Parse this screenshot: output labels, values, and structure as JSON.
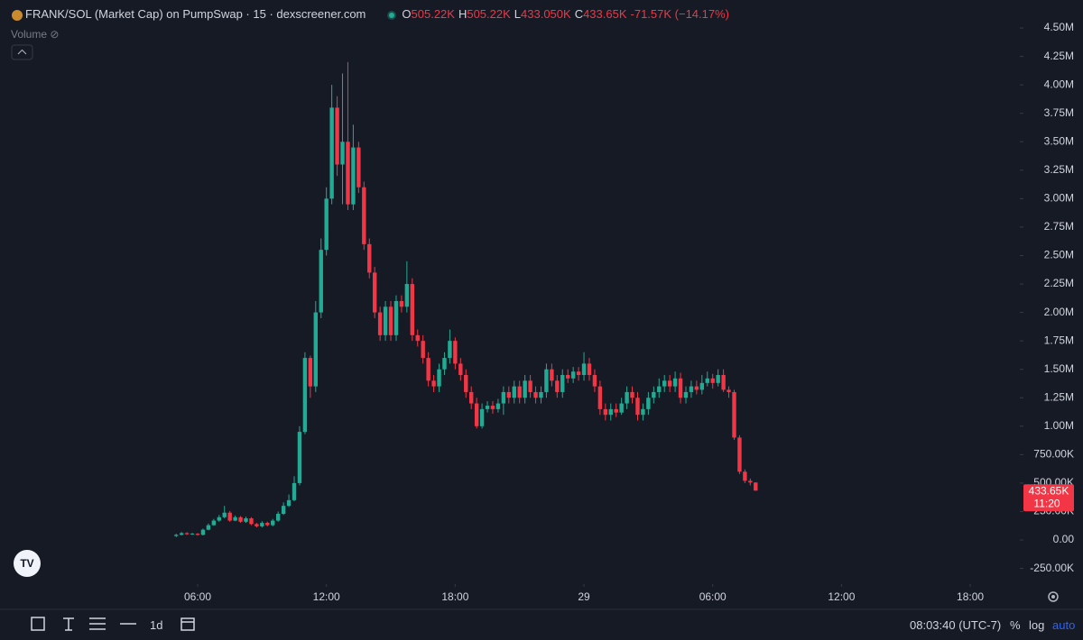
{
  "chart_data": {
    "type": "candlestick",
    "title": "FRANK/SOL (Market Cap) on PumpSwap · 15 · dexscreener.com",
    "legend_ohlc": [
      {
        "key": "O",
        "text": "505.22K"
      },
      {
        "key": "H",
        "text": "505.22K"
      },
      {
        "key": "L",
        "text": "433.050K"
      },
      {
        "key": "C",
        "text": "433.65K"
      }
    ],
    "change": "-71.57K (−14.17%)",
    "volume_label": "Volume",
    "up_color": "#22ab94",
    "down_color": "#f23645",
    "grid": false,
    "log_scale": false,
    "x": [
      5,
      5.25,
      5.5,
      5.75,
      6,
      6.25,
      6.5,
      6.75,
      7,
      7.25,
      7.5,
      7.75,
      8,
      8.25,
      8.5,
      8.75,
      9,
      9.25,
      9.5,
      9.75,
      10,
      10.25,
      10.5,
      10.75,
      11,
      11.25,
      11.5,
      11.75,
      12,
      12.25,
      12.5,
      12.75,
      13,
      13.25,
      13.5,
      13.75,
      14,
      14.25,
      14.5,
      14.75,
      15,
      15.25,
      15.5,
      15.75,
      16,
      16.25,
      16.5,
      16.75,
      17,
      17.25,
      17.5,
      17.75,
      18,
      18.25,
      18.5,
      18.75,
      19,
      19.25,
      19.5,
      19.75,
      20,
      20.25,
      20.5,
      20.75,
      21,
      21.25,
      21.5,
      21.75,
      22,
      22.25,
      22.5,
      22.75,
      23,
      23.25,
      23.5,
      23.75,
      24,
      24.25,
      24.5,
      24.75,
      25,
      25.25,
      25.5,
      25.75,
      26,
      26.25,
      26.5,
      26.75,
      27,
      27.25,
      27.5,
      27.75,
      28,
      28.25,
      28.5,
      28.75,
      29,
      29.25,
      29.5,
      29.75,
      30,
      30.25,
      30.5,
      30.75,
      31,
      31.25,
      31.5,
      31.75,
      32
    ],
    "open": [
      35000,
      45000,
      60000,
      50000,
      55000,
      45000,
      90000,
      130000,
      170000,
      200000,
      240000,
      170000,
      200000,
      160000,
      190000,
      140000,
      120000,
      150000,
      130000,
      170000,
      230000,
      300000,
      350000,
      500000,
      950000,
      1600000,
      1350000,
      2000000,
      2550000,
      3000000,
      3800000,
      3300000,
      3500000,
      2950000,
      3450000,
      3100000,
      2600000,
      2350000,
      2000000,
      1800000,
      2050000,
      1800000,
      2100000,
      2050000,
      2250000,
      1800000,
      1750000,
      1600000,
      1400000,
      1350000,
      1500000,
      1600000,
      1750000,
      1550000,
      1450000,
      1300000,
      1200000,
      1000000,
      1150000,
      1180000,
      1150000,
      1200000,
      1300000,
      1250000,
      1350000,
      1250000,
      1400000,
      1300000,
      1250000,
      1300000,
      1500000,
      1400000,
      1300000,
      1450000,
      1420000,
      1480000,
      1450000,
      1550000,
      1450000,
      1350000,
      1150000,
      1100000,
      1150000,
      1120000,
      1200000,
      1300000,
      1250000,
      1100000,
      1150000,
      1250000,
      1300000,
      1350000,
      1400000,
      1350000,
      1420000,
      1250000,
      1300000,
      1350000,
      1320000,
      1380000,
      1420000,
      1380000,
      1450000,
      1320000,
      1300000,
      900000,
      600000,
      520000,
      505220
    ],
    "high": [
      55000,
      70000,
      68000,
      62000,
      60000,
      100000,
      145000,
      185000,
      220000,
      300000,
      255000,
      215000,
      210000,
      205000,
      200000,
      150000,
      165000,
      160000,
      185000,
      250000,
      330000,
      400000,
      560000,
      1000000,
      1650000,
      1620000,
      2100000,
      2650000,
      3100000,
      4000000,
      3900000,
      4100000,
      4200000,
      3650000,
      3500000,
      3150000,
      2650000,
      2400000,
      2050000,
      2100000,
      2100000,
      2150000,
      2150000,
      2450000,
      2300000,
      1850000,
      1800000,
      1650000,
      1450000,
      1550000,
      1650000,
      1850000,
      1780000,
      1600000,
      1500000,
      1350000,
      1250000,
      1200000,
      1220000,
      1220000,
      1240000,
      1350000,
      1350000,
      1400000,
      1400000,
      1450000,
      1450000,
      1350000,
      1350000,
      1550000,
      1550000,
      1450000,
      1500000,
      1500000,
      1520000,
      1520000,
      1650000,
      1600000,
      1500000,
      1400000,
      1200000,
      1200000,
      1200000,
      1250000,
      1350000,
      1350000,
      1300000,
      1200000,
      1300000,
      1350000,
      1420000,
      1450000,
      1450000,
      1480000,
      1470000,
      1350000,
      1400000,
      1400000,
      1450000,
      1480000,
      1460000,
      1500000,
      1500000,
      1350000,
      1320000,
      920000,
      620000,
      540000,
      505220
    ],
    "low": [
      25000,
      40000,
      45000,
      45000,
      38000,
      40000,
      85000,
      125000,
      160000,
      190000,
      160000,
      165000,
      150000,
      150000,
      130000,
      110000,
      110000,
      120000,
      120000,
      160000,
      220000,
      290000,
      340000,
      480000,
      930000,
      1250000,
      1300000,
      1950000,
      2500000,
      2950000,
      3200000,
      2950000,
      2900000,
      2900000,
      3050000,
      2550000,
      2300000,
      1950000,
      1750000,
      1750000,
      1750000,
      1750000,
      2000000,
      2000000,
      1750000,
      1700000,
      1550000,
      1350000,
      1300000,
      1300000,
      1450000,
      1550000,
      1500000,
      1400000,
      1250000,
      1150000,
      980000,
      980000,
      1120000,
      1110000,
      1120000,
      1100000,
      1200000,
      1200000,
      1200000,
      1200000,
      1250000,
      1200000,
      1200000,
      1250000,
      1350000,
      1250000,
      1250000,
      1380000,
      1380000,
      1400000,
      1400000,
      1400000,
      1300000,
      1100000,
      1050000,
      1050000,
      1080000,
      1100000,
      1150000,
      1200000,
      1050000,
      1050000,
      1100000,
      1200000,
      1250000,
      1300000,
      1300000,
      1300000,
      1200000,
      1200000,
      1250000,
      1280000,
      1280000,
      1350000,
      1330000,
      1350000,
      1300000,
      1250000,
      880000,
      580000,
      500000,
      480000,
      433050
    ],
    "close": [
      45000,
      60000,
      50000,
      55000,
      45000,
      90000,
      130000,
      170000,
      200000,
      240000,
      170000,
      200000,
      160000,
      190000,
      140000,
      120000,
      150000,
      130000,
      170000,
      230000,
      300000,
      350000,
      500000,
      950000,
      1600000,
      1350000,
      2000000,
      2550000,
      3000000,
      3800000,
      3300000,
      3500000,
      2950000,
      3450000,
      3100000,
      2600000,
      2350000,
      2000000,
      1800000,
      2050000,
      1800000,
      2100000,
      2050000,
      2250000,
      1800000,
      1750000,
      1600000,
      1400000,
      1350000,
      1500000,
      1600000,
      1750000,
      1550000,
      1450000,
      1300000,
      1200000,
      1000000,
      1150000,
      1180000,
      1150000,
      1200000,
      1300000,
      1250000,
      1350000,
      1250000,
      1400000,
      1300000,
      1250000,
      1300000,
      1500000,
      1400000,
      1300000,
      1450000,
      1420000,
      1480000,
      1450000,
      1550000,
      1450000,
      1350000,
      1150000,
      1100000,
      1150000,
      1120000,
      1200000,
      1300000,
      1250000,
      1100000,
      1150000,
      1250000,
      1300000,
      1350000,
      1400000,
      1350000,
      1420000,
      1250000,
      1300000,
      1350000,
      1320000,
      1380000,
      1420000,
      1380000,
      1450000,
      1320000,
      1300000,
      900000,
      600000,
      520000,
      505220,
      433650
    ],
    "xlim": [
      -3.21,
      44.31
    ],
    "xticks": [
      {
        "value": 6,
        "label": "06:00"
      },
      {
        "value": 12,
        "label": "12:00"
      },
      {
        "value": 18,
        "label": "18:00"
      },
      {
        "value": 24,
        "label": "29"
      },
      {
        "value": 30,
        "label": "06:00"
      },
      {
        "value": 36,
        "label": "12:00"
      },
      {
        "value": 42,
        "label": "18:00"
      }
    ],
    "ylim": [
      -388000,
      4746000
    ],
    "yticks": [
      {
        "value": -250000,
        "label": "-250.00K"
      },
      {
        "value": 0,
        "label": "0.00"
      },
      {
        "value": 250000,
        "label": "250.00K"
      },
      {
        "value": 500000,
        "label": "500.00K"
      },
      {
        "value": 750000,
        "label": "750.00K"
      },
      {
        "value": 1000000,
        "label": "1.00M"
      },
      {
        "value": 1250000,
        "label": "1.25M"
      },
      {
        "value": 1500000,
        "label": "1.50M"
      },
      {
        "value": 1750000,
        "label": "1.75M"
      },
      {
        "value": 2000000,
        "label": "2.00M"
      },
      {
        "value": 2250000,
        "label": "2.25M"
      },
      {
        "value": 2500000,
        "label": "2.50M"
      },
      {
        "value": 2750000,
        "label": "2.75M"
      },
      {
        "value": 3000000,
        "label": "3.00M"
      },
      {
        "value": 3250000,
        "label": "3.25M"
      },
      {
        "value": 3500000,
        "label": "3.50M"
      },
      {
        "value": 3750000,
        "label": "3.75M"
      },
      {
        "value": 4000000,
        "label": "4.00M"
      },
      {
        "value": 4250000,
        "label": "4.25M"
      },
      {
        "value": 4500000,
        "label": "4.50M"
      }
    ],
    "last_price": {
      "value": 433650,
      "label": "433.65K"
    },
    "countdown": "11:20"
  },
  "toolbar": {
    "interval": "1d",
    "clock": "08:03:40 (UTC-7)",
    "percent": "%",
    "log": "log",
    "auto": "auto"
  }
}
